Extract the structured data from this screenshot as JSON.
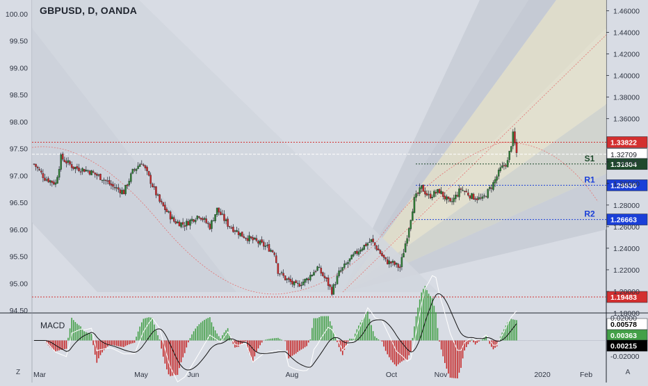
{
  "chart_title": "GBPUSD, D, OANDA",
  "chart_data": {
    "type": "candlestick",
    "title": "GBPUSD, D, OANDA",
    "left_axis": {
      "ticks": [
        "100.00",
        "99.50",
        "99.00",
        "98.50",
        "98.00",
        "97.50",
        "97.00",
        "96.50",
        "96.00",
        "95.50",
        "95.00",
        "94.50"
      ],
      "range": [
        94.5,
        100.0
      ]
    },
    "right_axis": {
      "ticks": [
        "1.46000",
        "1.44000",
        "1.42000",
        "1.40000",
        "1.38000",
        "1.36000",
        "1.32000",
        "1.30000",
        "1.28000",
        "1.26000",
        "1.24000",
        "1.22000",
        "1.20000",
        "1.18000"
      ],
      "range": [
        1.18,
        1.47
      ]
    },
    "x_ticks": [
      "Mar",
      "May",
      "Jun",
      "Aug",
      "Oct",
      "Nov",
      "2020",
      "Feb",
      "A"
    ],
    "price_levels": [
      {
        "value": 1.33822,
        "label": "1.33822",
        "color": "#d32f2f",
        "style": "dotted"
      },
      {
        "value": 1.32709,
        "label": "1.32709",
        "color": "#ffffff",
        "style": "dashed"
      },
      {
        "value": 1.31804,
        "label": "1.31804",
        "color": "#1f4a2c",
        "style": "dotted",
        "name": "S1"
      },
      {
        "value": 1.2983,
        "label": "1.29830",
        "color": "#1a3fd8",
        "style": "dotted",
        "name": "R1"
      },
      {
        "value": 1.26663,
        "label": "1.26663",
        "color": "#1a3fd8",
        "style": "dotted",
        "name": "R2"
      },
      {
        "value": 1.19483,
        "label": "1.19483",
        "color": "#d32f2f",
        "style": "dotted"
      }
    ],
    "trend_waypoints": [
      {
        "t": 0,
        "p": 1.318
      },
      {
        "t": 6,
        "p": 1.305
      },
      {
        "t": 12,
        "p": 1.3
      },
      {
        "t": 15,
        "p": 1.324
      },
      {
        "t": 22,
        "p": 1.315
      },
      {
        "t": 30,
        "p": 1.312
      },
      {
        "t": 38,
        "p": 1.305
      },
      {
        "t": 44,
        "p": 1.297
      },
      {
        "t": 50,
        "p": 1.292
      },
      {
        "t": 55,
        "p": 1.311
      },
      {
        "t": 60,
        "p": 1.32
      },
      {
        "t": 65,
        "p": 1.302
      },
      {
        "t": 70,
        "p": 1.283
      },
      {
        "t": 78,
        "p": 1.265
      },
      {
        "t": 84,
        "p": 1.262
      },
      {
        "t": 92,
        "p": 1.271
      },
      {
        "t": 98,
        "p": 1.26
      },
      {
        "t": 102,
        "p": 1.276
      },
      {
        "t": 108,
        "p": 1.262
      },
      {
        "t": 116,
        "p": 1.252
      },
      {
        "t": 124,
        "p": 1.246
      },
      {
        "t": 130,
        "p": 1.241
      },
      {
        "t": 134,
        "p": 1.236
      },
      {
        "t": 136,
        "p": 1.219
      },
      {
        "t": 140,
        "p": 1.212
      },
      {
        "t": 146,
        "p": 1.205
      },
      {
        "t": 152,
        "p": 1.211
      },
      {
        "t": 158,
        "p": 1.222
      },
      {
        "t": 163,
        "p": 1.21
      },
      {
        "t": 166,
        "p": 1.2
      },
      {
        "t": 170,
        "p": 1.217
      },
      {
        "t": 176,
        "p": 1.229
      },
      {
        "t": 182,
        "p": 1.24
      },
      {
        "t": 188,
        "p": 1.247
      },
      {
        "t": 192,
        "p": 1.238
      },
      {
        "t": 196,
        "p": 1.228
      },
      {
        "t": 200,
        "p": 1.226
      },
      {
        "t": 204,
        "p": 1.222
      },
      {
        "t": 208,
        "p": 1.252
      },
      {
        "t": 212,
        "p": 1.285
      },
      {
        "t": 216,
        "p": 1.296
      },
      {
        "t": 220,
        "p": 1.288
      },
      {
        "t": 226,
        "p": 1.293
      },
      {
        "t": 232,
        "p": 1.281
      },
      {
        "t": 238,
        "p": 1.295
      },
      {
        "t": 244,
        "p": 1.288
      },
      {
        "t": 250,
        "p": 1.285
      },
      {
        "t": 256,
        "p": 1.3
      },
      {
        "t": 260,
        "p": 1.313
      },
      {
        "t": 264,
        "p": 1.32
      },
      {
        "t": 267,
        "p": 1.345
      },
      {
        "t": 269,
        "p": 1.328
      }
    ],
    "candle_count": 270,
    "macd": {
      "label": "MACD",
      "ticks": [
        "0.02000",
        "0.00000",
        "-0.02000"
      ],
      "range": [
        -0.024,
        0.024
      ],
      "values": [
        {
          "label": "0.00578",
          "color": "#ffffff",
          "text": "#000000"
        },
        {
          "label": "0.00363",
          "color": "#43a047",
          "text": "#ffffff"
        },
        {
          "label": "0.00215",
          "color": "#000000",
          "text": "#ffffff"
        }
      ]
    },
    "colors": {
      "up": "#2e7d32",
      "down": "#c62828",
      "background": "#d8dce4"
    }
  },
  "toolbar": {
    "zoom_label": "Z",
    "scale_label": "A"
  }
}
